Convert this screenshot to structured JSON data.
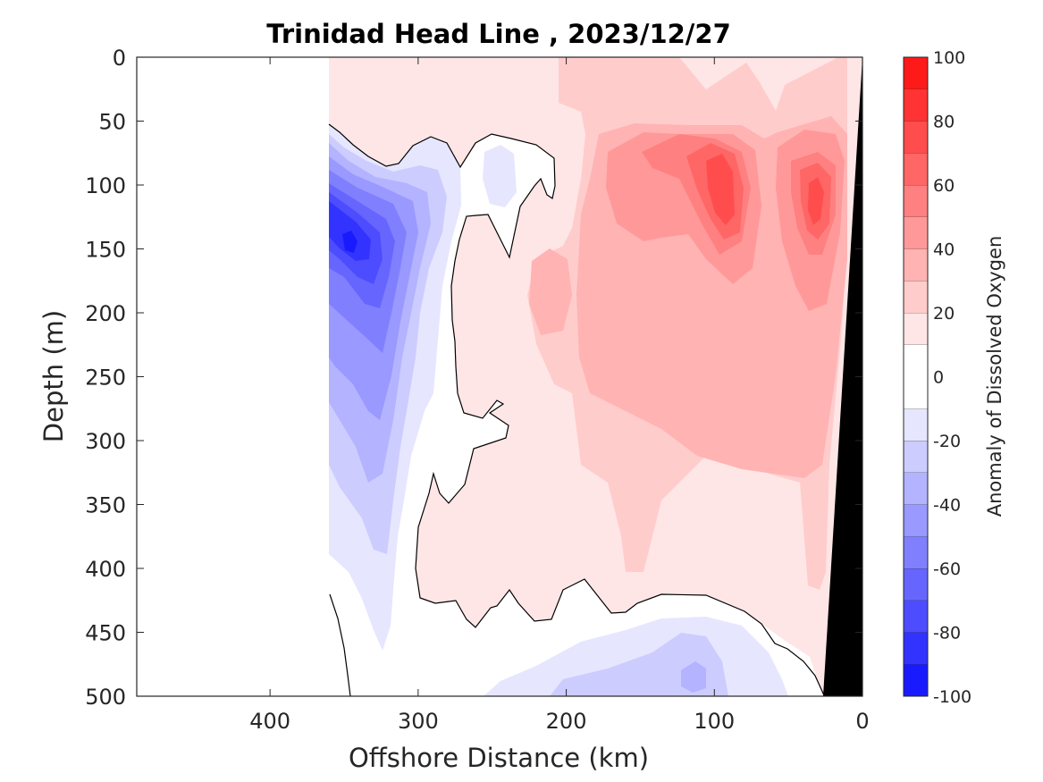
{
  "chart_data": {
    "type": "heatmap",
    "title": "Trinidad Head Line , 2023/12/27",
    "xlabel": "Offshore Distance (km)",
    "ylabel": "Depth (m)",
    "xlim": [
      490,
      0
    ],
    "ylim": [
      0,
      500
    ],
    "x_reversed": true,
    "y_reversed": true,
    "xticks": [
      400,
      300,
      200,
      100,
      0
    ],
    "yticks": [
      0,
      50,
      100,
      150,
      200,
      250,
      300,
      350,
      400,
      450,
      500
    ],
    "colorbar": {
      "label": "Anomaly of Dissolved Oxygen",
      "min": -100,
      "max": 100,
      "ticks": [
        100,
        80,
        60,
        40,
        20,
        0,
        -20,
        -40,
        -60,
        -80,
        -100
      ],
      "levels": [
        -100,
        -90,
        -80,
        -70,
        -60,
        -50,
        -40,
        -30,
        -20,
        -10,
        10,
        20,
        30,
        40,
        50,
        60,
        70,
        80,
        90,
        100
      ],
      "colors": [
        "#0000ff",
        "#1a1aff",
        "#3333ff",
        "#4d4dff",
        "#6666ff",
        "#8080ff",
        "#9999ff",
        "#b3b3ff",
        "#ccccff",
        "#e6e6ff",
        "#ffffff",
        "#ffe6e6",
        "#ffcccc",
        "#ffb3b3",
        "#ff9999",
        "#ff8080",
        "#ff6666",
        "#ff4d4d",
        "#ff3333",
        "#ff1a1a",
        "#ff0000"
      ]
    },
    "data_extent_km": [
      0,
      360
    ],
    "regions": [
      {
        "name": "nearshore-positive-anomaly",
        "distance_km": [
          0,
          290
        ],
        "depth_m": [
          0,
          470
        ],
        "anomaly": 15
      },
      {
        "name": "positive-core-100km",
        "distance_km": [
          80,
          110
        ],
        "depth_m": [
          80,
          150
        ],
        "anomaly": 65
      },
      {
        "name": "positive-core-30km",
        "distance_km": [
          20,
          40
        ],
        "depth_m": [
          90,
          170
        ],
        "anomaly": 55
      },
      {
        "name": "offshore-negative-core",
        "distance_km": [
          310,
          360
        ],
        "depth_m": [
          100,
          250
        ],
        "anomaly": -85
      },
      {
        "name": "deep-negative-patch",
        "distance_km": [
          100,
          140
        ],
        "depth_m": [
          460,
          500
        ],
        "anomaly": -30
      }
    ],
    "seafloor": {
      "color": "#000000",
      "distance_km_at_top": 0,
      "distance_km_at_bottom": 30
    }
  }
}
